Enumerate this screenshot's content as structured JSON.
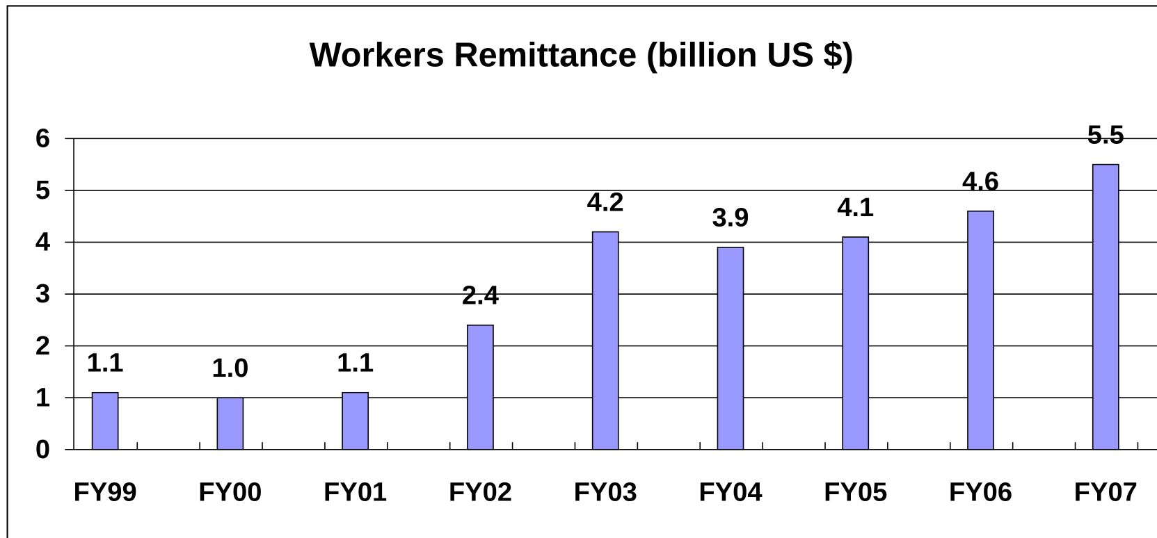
{
  "chart_data": {
    "type": "bar",
    "title": "Workers Remittance (billion US $)",
    "categories": [
      "FY99",
      "FY00",
      "FY01",
      "FY02",
      "FY03",
      "FY04",
      "FY05",
      "FY06",
      "FY07"
    ],
    "values": [
      1.1,
      1.0,
      1.1,
      2.4,
      4.2,
      3.9,
      4.1,
      4.6,
      5.5
    ],
    "value_labels": [
      "1.1",
      "1.0",
      "1.1",
      "2.4",
      "4.2",
      "3.9",
      "4.1",
      "4.6",
      "5.5"
    ],
    "color": "#9999ff",
    "ylim": [
      0,
      6
    ],
    "yticks": [
      0,
      1,
      2,
      3,
      4,
      5,
      6
    ],
    "grid": true
  }
}
